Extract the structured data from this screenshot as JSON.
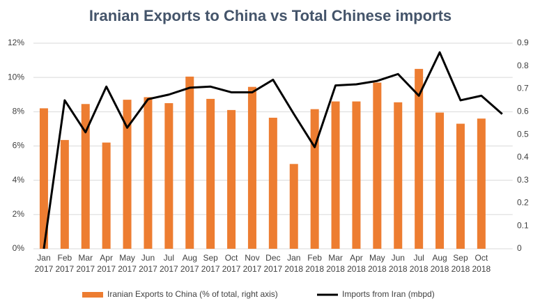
{
  "chart_data": {
    "type": "bar_line",
    "title": "Iranian Exports to China vs Total Chinese imports",
    "categories": [
      [
        "Jan",
        "2017"
      ],
      [
        "Feb",
        "2017"
      ],
      [
        "Mar",
        "2017"
      ],
      [
        "Apr",
        "2017"
      ],
      [
        "May",
        "2017"
      ],
      [
        "Jun",
        "2017"
      ],
      [
        "Jul",
        "2017"
      ],
      [
        "Aug",
        "2017"
      ],
      [
        "Sep",
        "2017"
      ],
      [
        "Oct",
        "2017"
      ],
      [
        "Nov",
        "2017"
      ],
      [
        "Dec",
        "2017"
      ],
      [
        "Jan",
        "2018"
      ],
      [
        "Feb",
        "2018"
      ],
      [
        "Mar",
        "2018"
      ],
      [
        "Apr",
        "2018"
      ],
      [
        "May",
        "2018"
      ],
      [
        "Jun",
        "2018"
      ],
      [
        "Jul",
        "2018"
      ],
      [
        "Aug",
        "2018"
      ],
      [
        "Sep",
        "2018"
      ],
      [
        "Oct",
        "2018"
      ],
      null
    ],
    "series": [
      {
        "name": "Iranian Exports to China (% of total, right axis)",
        "color": "#ed7d31",
        "kind": "bar",
        "values": [
          8.2,
          6.35,
          8.45,
          6.2,
          8.7,
          8.85,
          8.5,
          10.05,
          8.75,
          8.1,
          9.45,
          7.65,
          4.95,
          8.15,
          8.6,
          8.6,
          9.7,
          8.55,
          10.5,
          7.95,
          7.3,
          7.6,
          null
        ]
      },
      {
        "name": "Imports from Iran (mbpd)",
        "color": "#000000",
        "kind": "line",
        "axis": "y2",
        "values": [
          0,
          0.65,
          0.51,
          0.71,
          0.53,
          0.655,
          0.675,
          0.705,
          0.71,
          0.685,
          0.685,
          0.74,
          0.59,
          0.445,
          0.715,
          0.72,
          0.735,
          0.765,
          0.67,
          0.86,
          0.65,
          0.67,
          0.59
        ]
      }
    ],
    "ylim": [
      0,
      12
    ],
    "yticks": [
      {
        "value": 0,
        "label": "0%"
      },
      {
        "value": 2,
        "label": "2%"
      },
      {
        "value": 4,
        "label": "4%"
      },
      {
        "value": 6,
        "label": "6%"
      },
      {
        "value": 8,
        "label": "8%"
      },
      {
        "value": 10,
        "label": "10%"
      },
      {
        "value": 12,
        "label": "12%"
      }
    ],
    "y2lim": [
      0,
      0.9
    ],
    "y2ticks": [
      0,
      0.1,
      0.2,
      0.3,
      0.4,
      0.5,
      0.6,
      0.7,
      0.8,
      0.9
    ],
    "grid": true,
    "legend": "bottom"
  }
}
